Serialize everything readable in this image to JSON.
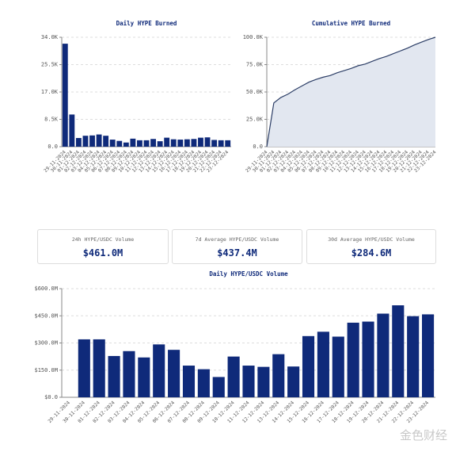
{
  "chart_data": [
    {
      "type": "bar",
      "title": "Daily HYPE Burned",
      "color": "#0f2a7a",
      "grid": true,
      "categories": [
        "29-11-2024",
        "30-11-2024",
        "01-12-2024",
        "02-12-2024",
        "03-12-2024",
        "04-12-2024",
        "05-12-2024",
        "06-12-2024",
        "07-12-2024",
        "08-12-2024",
        "09-12-2024",
        "10-12-2024",
        "11-12-2024",
        "12-12-2024",
        "13-12-2024",
        "14-12-2024",
        "15-12-2024",
        "16-12-2024",
        "17-12-2024",
        "18-12-2024",
        "19-12-2024",
        "20-12-2024",
        "21-12-2024",
        "22-12-2024",
        "23-12-2024"
      ],
      "values": [
        32000,
        10000,
        2700,
        3400,
        3500,
        3800,
        3400,
        2200,
        1800,
        1300,
        2500,
        2000,
        2000,
        2400,
        1700,
        2800,
        2300,
        2200,
        2300,
        2400,
        2800,
        2900,
        2100,
        2000,
        2000
      ],
      "ylim": [
        0,
        34000
      ],
      "yticks": [
        {
          "value": 0,
          "label": "0.0"
        },
        {
          "value": 8500,
          "label": "8.5K"
        },
        {
          "value": 17000,
          "label": "17.0K"
        },
        {
          "value": 25500,
          "label": "25.5K"
        },
        {
          "value": 34000,
          "label": "34.0K"
        }
      ]
    },
    {
      "type": "area",
      "title": "Cumulative HYPE Burned",
      "color": "#2c3e66",
      "fill": "#e2e7f0",
      "grid": true,
      "categories": [
        "29-11-2024",
        "30-11-2024",
        "01-12-2024",
        "02-12-2024",
        "03-12-2024",
        "04-12-2024",
        "05-12-2024",
        "06-12-2024",
        "07-12-2024",
        "08-12-2024",
        "09-12-2024",
        "10-12-2024",
        "11-12-2024",
        "12-12-2024",
        "13-12-2024",
        "14-12-2024",
        "15-12-2024",
        "16-12-2024",
        "17-12-2024",
        "18-12-2024",
        "19-12-2024",
        "20-12-2024",
        "21-12-2024",
        "22-12-2024",
        "23-12-2024"
      ],
      "values": [
        0,
        40000,
        45000,
        48000,
        52000,
        55500,
        59000,
        61500,
        63500,
        65000,
        67500,
        69500,
        71500,
        74000,
        75500,
        78000,
        80500,
        82500,
        85000,
        87500,
        90000,
        93000,
        95500,
        98000,
        100000
      ],
      "ylim": [
        0,
        100000
      ],
      "yticks": [
        {
          "value": 0,
          "label": "0.0"
        },
        {
          "value": 25000,
          "label": "25.0K"
        },
        {
          "value": 50000,
          "label": "50.0K"
        },
        {
          "value": 75000,
          "label": "75.0K"
        },
        {
          "value": 100000,
          "label": "100.0K"
        }
      ]
    },
    {
      "type": "bar",
      "title": "Daily HYPE/USDC Volume",
      "color": "#0f2a7a",
      "grid": true,
      "categories": [
        "29-11-2024",
        "30-11-2024",
        "01-12-2024",
        "02-12-2024",
        "03-12-2024",
        "04-12-2024",
        "05-12-2024",
        "06-12-2024",
        "07-12-2024",
        "08-12-2024",
        "09-12-2024",
        "10-12-2024",
        "11-12-2024",
        "12-12-2024",
        "13-12-2024",
        "14-12-2024",
        "15-12-2024",
        "16-12-2024",
        "17-12-2024",
        "18-12-2024",
        "19-12-2024",
        "20-12-2024",
        "21-12-2024",
        "22-12-2024",
        "23-12-2024"
      ],
      "values": [
        null,
        320,
        320,
        228,
        255,
        220,
        292,
        262,
        175,
        155,
        112,
        225,
        175,
        168,
        238,
        170,
        338,
        362,
        335,
        412,
        418,
        462,
        508,
        448,
        458
      ],
      "ylim": [
        0,
        600
      ],
      "yticks": [
        {
          "value": 0,
          "label": "$0.0"
        },
        {
          "value": 150,
          "label": "$150.0M"
        },
        {
          "value": 300,
          "label": "$300.0M"
        },
        {
          "value": 450,
          "label": "$450.0M"
        },
        {
          "value": 600,
          "label": "$600.0M"
        }
      ]
    }
  ],
  "stats": [
    {
      "label": "24h HYPE/USDC Volume",
      "value": "$461.0M"
    },
    {
      "label": "7d Average HYPE/USDC Volume",
      "value": "$437.4M"
    },
    {
      "label": "30d Average HYPE/USDC Volume",
      "value": "$284.6M"
    }
  ],
  "watermark": "金色财经"
}
